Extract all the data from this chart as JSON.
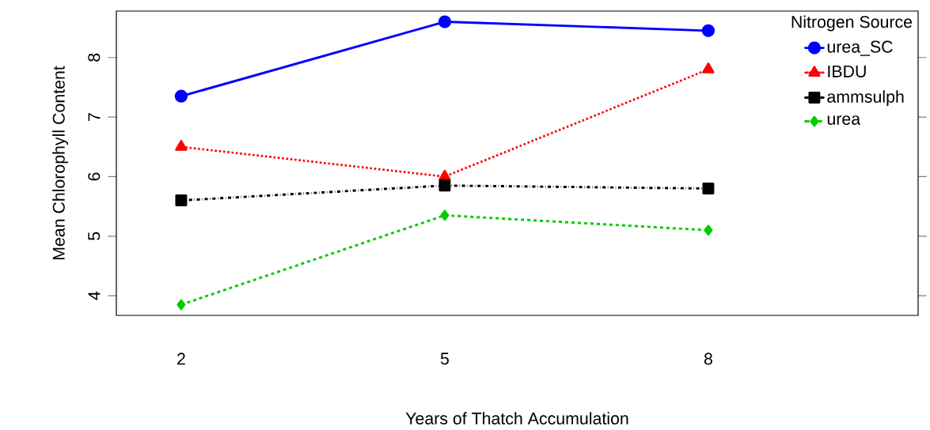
{
  "chart_data": {
    "type": "line",
    "xlabel": "Years of Thatch Accumulation",
    "ylabel": "Mean Chlorophyll Content",
    "legend_title": "Nitrogen Source",
    "categories": [
      "2",
      "5",
      "8"
    ],
    "series": [
      {
        "name": "urea_SC",
        "color": "#0000ff",
        "marker": "circle",
        "line_style": "solid",
        "values": [
          7.35,
          8.6,
          8.45
        ]
      },
      {
        "name": "IBDU",
        "color": "#ff0000",
        "marker": "triangle",
        "line_style": "dotted",
        "values": [
          6.5,
          6.0,
          7.8
        ]
      },
      {
        "name": "ammsulph",
        "color": "#000000",
        "marker": "square",
        "line_style": "dashdot",
        "values": [
          5.6,
          5.85,
          5.8
        ]
      },
      {
        "name": "urea",
        "color": "#00cd00",
        "marker": "diamond",
        "line_style": "dashed",
        "values": [
          3.85,
          5.35,
          5.1
        ]
      }
    ],
    "ylim": [
      3.67,
      8.78
    ],
    "yticks": [
      4,
      5,
      6,
      7,
      8
    ],
    "legend": "top right",
    "grid": false
  }
}
